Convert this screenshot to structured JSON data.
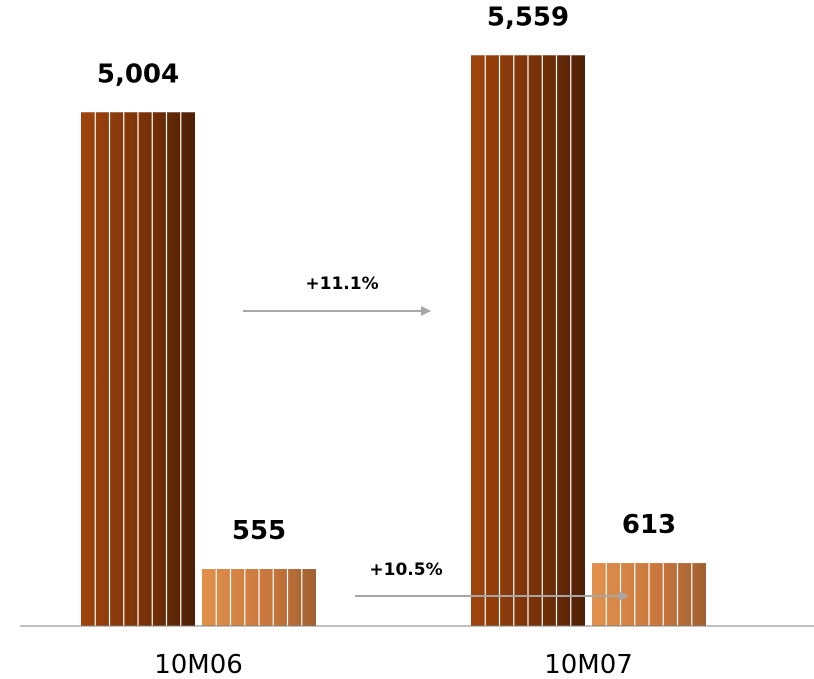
{
  "chart_data": {
    "type": "bar",
    "categories": [
      "10M06",
      "10M07"
    ],
    "series": [
      {
        "values": [
          5004,
          5559
        ],
        "value_labels": [
          "5,004",
          "5,559"
        ]
      },
      {
        "values": [
          555,
          613
        ],
        "value_labels": [
          "555",
          "613"
        ]
      }
    ],
    "changes": [
      {
        "label": "+11.1%",
        "series_index": 0
      },
      {
        "label": "+10.5%",
        "series_index": 1
      }
    ],
    "ylim": [
      0,
      6000
    ],
    "grid": false,
    "legend": "none",
    "colors": {
      "series_0_gradient": [
        "#a0440c",
        "#7a3208",
        "#4e2005"
      ],
      "series_1_gradient": [
        "#e0914c",
        "#c8763c",
        "#a06030"
      ],
      "arrow": "#a6a6a6",
      "axis": "#808080",
      "stripe": "#ffffff"
    }
  }
}
